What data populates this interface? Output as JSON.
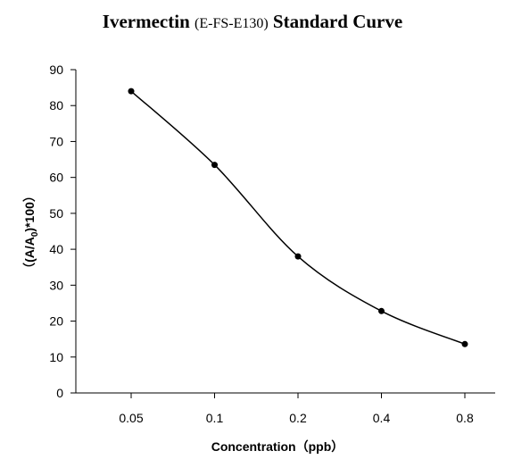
{
  "chart_data": {
    "type": "line",
    "title": {
      "part1": "Ivermectin ",
      "part2": "(E-FS-E130)",
      "part3": " Standard Curve"
    },
    "xlabel": "Concentration（ppb）",
    "ylabel": {
      "prefix": "（(A/A",
      "sub": "0",
      "suffix": ")*100）"
    },
    "categories": [
      "0.05",
      "0.1",
      "0.2",
      "0.4",
      "0.8"
    ],
    "values": [
      84,
      63.5,
      38,
      22.8,
      13.6
    ],
    "ylim": [
      0,
      90
    ],
    "yticks": [
      "0",
      "10",
      "20",
      "30",
      "40",
      "50",
      "60",
      "70",
      "80",
      "90"
    ],
    "grid": false,
    "marker": "circle",
    "smooth": true
  }
}
